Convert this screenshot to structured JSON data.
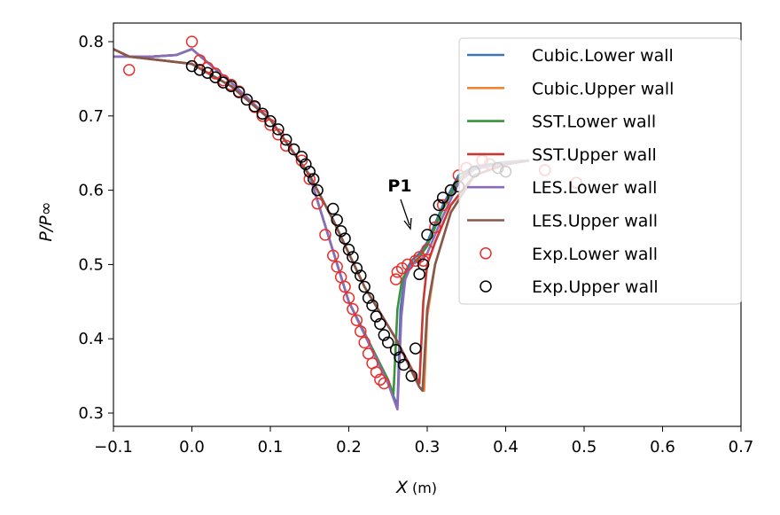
{
  "chart_data": {
    "type": "line",
    "xlabel": "X",
    "xlabel_unit": "(m)",
    "ylabel": "P/P∞",
    "xlim": [
      -0.1,
      0.7
    ],
    "ylim": [
      0.28,
      0.82
    ],
    "xticks": [
      "−0.1",
      "0.0",
      "0.1",
      "0.2",
      "0.3",
      "0.4",
      "0.5",
      "0.6",
      "0.7"
    ],
    "xtick_values": [
      -0.1,
      0,
      0.1,
      0.2,
      0.3,
      0.4,
      0.5,
      0.6,
      0.7
    ],
    "yticks": [
      "0.3",
      "0.4",
      "0.5",
      "0.6",
      "0.7",
      "0.8"
    ],
    "ytick_values": [
      0.3,
      0.4,
      0.5,
      0.6,
      0.7,
      0.8
    ],
    "grid": false,
    "legend_position": "top-right",
    "annotation": {
      "text": "P1",
      "x": 0.282,
      "y": 0.51
    },
    "series": [
      {
        "name": "Cubic.Lower wall",
        "color": "#3a76af",
        "kind": "line",
        "x": [
          -0.1,
          -0.05,
          -0.02,
          0,
          0.05,
          0.1,
          0.15,
          0.2,
          0.25,
          0.262,
          0.266,
          0.272,
          0.28,
          0.29,
          0.3,
          0.32,
          0.34,
          0.36,
          0.4,
          0.43
        ],
        "y": [
          0.78,
          0.78,
          0.782,
          0.79,
          0.745,
          0.695,
          0.62,
          0.45,
          0.34,
          0.31,
          0.44,
          0.49,
          0.505,
          0.515,
          0.53,
          0.58,
          0.62,
          0.632,
          0.638,
          0.64
        ]
      },
      {
        "name": "Cubic.Upper wall",
        "color": "#ef8636",
        "kind": "line",
        "x": [
          -0.1,
          -0.08,
          0,
          0.05,
          0.1,
          0.15,
          0.18,
          0.22,
          0.26,
          0.29,
          0.296,
          0.3,
          0.31,
          0.33,
          0.36,
          0.4,
          0.43
        ],
        "y": [
          0.79,
          0.78,
          0.77,
          0.74,
          0.695,
          0.62,
          0.56,
          0.47,
          0.4,
          0.335,
          0.33,
          0.43,
          0.5,
          0.57,
          0.62,
          0.635,
          0.64
        ]
      },
      {
        "name": "SST.Lower wall",
        "color": "#3b923a",
        "kind": "line",
        "x": [
          -0.1,
          -0.05,
          -0.02,
          0,
          0.05,
          0.1,
          0.15,
          0.2,
          0.25,
          0.257,
          0.262,
          0.268,
          0.28,
          0.29,
          0.3,
          0.32,
          0.34,
          0.36,
          0.4,
          0.43
        ],
        "y": [
          0.78,
          0.78,
          0.782,
          0.79,
          0.745,
          0.695,
          0.62,
          0.45,
          0.345,
          0.325,
          0.44,
          0.48,
          0.5,
          0.51,
          0.525,
          0.575,
          0.615,
          0.63,
          0.638,
          0.64
        ]
      },
      {
        "name": "SST.Upper wall",
        "color": "#c53932",
        "kind": "line",
        "x": [
          -0.1,
          -0.08,
          0,
          0.05,
          0.1,
          0.15,
          0.18,
          0.22,
          0.26,
          0.285,
          0.29,
          0.295,
          0.3,
          0.31,
          0.33,
          0.36,
          0.4,
          0.43
        ],
        "y": [
          0.79,
          0.78,
          0.77,
          0.74,
          0.695,
          0.62,
          0.56,
          0.47,
          0.4,
          0.35,
          0.34,
          0.45,
          0.5,
          0.53,
          0.58,
          0.62,
          0.635,
          0.64
        ]
      },
      {
        "name": "LES.Lower wall",
        "color": "#8d6bb8",
        "kind": "line",
        "x": [
          -0.1,
          -0.05,
          -0.02,
          0,
          0.05,
          0.1,
          0.15,
          0.2,
          0.25,
          0.262,
          0.267,
          0.272,
          0.28,
          0.29,
          0.3,
          0.32,
          0.34,
          0.36,
          0.4,
          0.43
        ],
        "y": [
          0.78,
          0.78,
          0.782,
          0.79,
          0.745,
          0.695,
          0.62,
          0.45,
          0.34,
          0.305,
          0.43,
          0.48,
          0.5,
          0.505,
          0.515,
          0.565,
          0.61,
          0.628,
          0.637,
          0.64
        ]
      },
      {
        "name": "LES.Upper wall",
        "color": "#85584e",
        "kind": "line",
        "x": [
          -0.1,
          -0.08,
          0,
          0.05,
          0.1,
          0.15,
          0.18,
          0.22,
          0.26,
          0.29,
          0.294,
          0.3,
          0.31,
          0.33,
          0.36,
          0.4,
          0.43
        ],
        "y": [
          0.79,
          0.78,
          0.77,
          0.74,
          0.695,
          0.62,
          0.56,
          0.47,
          0.4,
          0.335,
          0.33,
          0.44,
          0.5,
          0.57,
          0.62,
          0.635,
          0.64
        ]
      },
      {
        "name": "Exp.Lower wall",
        "color": "#e8302d",
        "kind": "marker",
        "x": [
          -0.08,
          0,
          0.01,
          0.02,
          0.03,
          0.04,
          0.05,
          0.06,
          0.07,
          0.08,
          0.09,
          0.1,
          0.11,
          0.12,
          0.13,
          0.14,
          0.15,
          0.16,
          0.17,
          0.18,
          0.185,
          0.19,
          0.195,
          0.2,
          0.205,
          0.21,
          0.215,
          0.22,
          0.225,
          0.23,
          0.235,
          0.24,
          0.245,
          0.26,
          0.262,
          0.268,
          0.275,
          0.285,
          0.29,
          0.295,
          0.3,
          0.31,
          0.32,
          0.33,
          0.34,
          0.35,
          0.37,
          0.38,
          0.45,
          0.49
        ],
        "y": [
          0.762,
          0.8,
          0.775,
          0.765,
          0.757,
          0.748,
          0.742,
          0.733,
          0.722,
          0.712,
          0.7,
          0.688,
          0.675,
          0.66,
          0.655,
          0.64,
          0.615,
          0.582,
          0.54,
          0.512,
          0.497,
          0.483,
          0.47,
          0.455,
          0.44,
          0.425,
          0.41,
          0.395,
          0.38,
          0.367,
          0.355,
          0.345,
          0.34,
          0.48,
          0.49,
          0.495,
          0.5,
          0.505,
          0.51,
          0.505,
          0.52,
          0.55,
          0.58,
          0.6,
          0.62,
          0.63,
          0.64,
          0.635,
          0.627,
          0.61
        ]
      },
      {
        "name": "Exp.Upper wall",
        "color": "#000000",
        "kind": "marker",
        "x": [
          0,
          0.01,
          0.02,
          0.03,
          0.04,
          0.05,
          0.06,
          0.07,
          0.08,
          0.09,
          0.1,
          0.11,
          0.12,
          0.13,
          0.14,
          0.145,
          0.15,
          0.155,
          0.16,
          0.18,
          0.185,
          0.19,
          0.195,
          0.2,
          0.205,
          0.21,
          0.215,
          0.22,
          0.225,
          0.23,
          0.235,
          0.24,
          0.245,
          0.25,
          0.26,
          0.265,
          0.27,
          0.28,
          0.285,
          0.29,
          0.295,
          0.3,
          0.31,
          0.315,
          0.32,
          0.33,
          0.34,
          0.36,
          0.39,
          0.4
        ],
        "y": [
          0.767,
          0.762,
          0.758,
          0.752,
          0.745,
          0.74,
          0.732,
          0.722,
          0.713,
          0.703,
          0.693,
          0.682,
          0.668,
          0.655,
          0.645,
          0.635,
          0.625,
          0.615,
          0.6,
          0.575,
          0.56,
          0.545,
          0.535,
          0.52,
          0.51,
          0.495,
          0.485,
          0.47,
          0.455,
          0.445,
          0.43,
          0.42,
          0.405,
          0.395,
          0.385,
          0.375,
          0.365,
          0.35,
          0.387,
          0.487,
          0.5,
          0.54,
          0.56,
          0.58,
          0.59,
          0.6,
          0.605,
          0.625,
          0.63,
          0.625
        ]
      }
    ]
  }
}
